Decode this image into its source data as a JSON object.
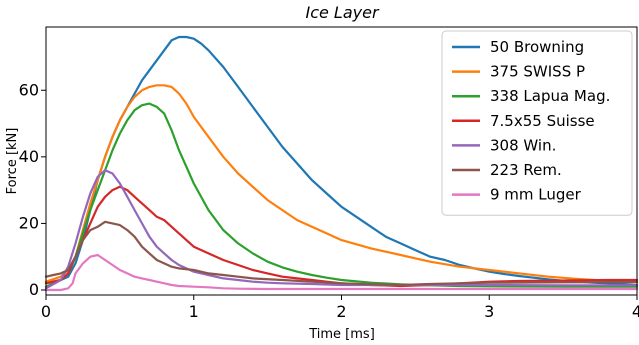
{
  "chart_data": {
    "type": "line",
    "title": "Ice Layer",
    "xlabel": "Time [ms]",
    "ylabel": "Force [kN]",
    "xlim": [
      0,
      4
    ],
    "ylim": [
      -1.5,
      79
    ],
    "xticks": [
      "0",
      "1",
      "2",
      "3",
      "4"
    ],
    "yticks": [
      "0",
      "20",
      "40",
      "60"
    ],
    "grid": false,
    "legend_position": "top-right",
    "series": [
      {
        "name": "50 Browning",
        "color": "#1f77b4",
        "points": [
          [
            0,
            2
          ],
          [
            0.05,
            2.5
          ],
          [
            0.1,
            3
          ],
          [
            0.15,
            4
          ],
          [
            0.2,
            8
          ],
          [
            0.25,
            15
          ],
          [
            0.3,
            24
          ],
          [
            0.35,
            33
          ],
          [
            0.4,
            40
          ],
          [
            0.45,
            46
          ],
          [
            0.5,
            51
          ],
          [
            0.55,
            55
          ],
          [
            0.6,
            59
          ],
          [
            0.65,
            63
          ],
          [
            0.7,
            66
          ],
          [
            0.75,
            69
          ],
          [
            0.8,
            72
          ],
          [
            0.85,
            75
          ],
          [
            0.9,
            76
          ],
          [
            0.95,
            76
          ],
          [
            1.0,
            75.5
          ],
          [
            1.05,
            74
          ],
          [
            1.1,
            72
          ],
          [
            1.2,
            67
          ],
          [
            1.3,
            61
          ],
          [
            1.4,
            55
          ],
          [
            1.5,
            49
          ],
          [
            1.6,
            43
          ],
          [
            1.7,
            38
          ],
          [
            1.8,
            33
          ],
          [
            1.9,
            29
          ],
          [
            2.0,
            25
          ],
          [
            2.1,
            22
          ],
          [
            2.2,
            19
          ],
          [
            2.3,
            16
          ],
          [
            2.4,
            14
          ],
          [
            2.5,
            12
          ],
          [
            2.6,
            10
          ],
          [
            2.7,
            9
          ],
          [
            2.8,
            7.5
          ],
          [
            2.9,
            6.5
          ],
          [
            3.0,
            5.5
          ],
          [
            3.1,
            4.8
          ],
          [
            3.2,
            4.2
          ],
          [
            3.3,
            3.7
          ],
          [
            3.4,
            3.2
          ],
          [
            3.5,
            2.8
          ],
          [
            3.6,
            2.5
          ],
          [
            3.7,
            2.2
          ],
          [
            3.8,
            2
          ],
          [
            3.9,
            1.8
          ],
          [
            4.0,
            1.5
          ]
        ]
      },
      {
        "name": "375 SWISS P",
        "color": "#ff7f0e",
        "points": [
          [
            0,
            2.5
          ],
          [
            0.1,
            4
          ],
          [
            0.15,
            6
          ],
          [
            0.2,
            10
          ],
          [
            0.25,
            18
          ],
          [
            0.3,
            26
          ],
          [
            0.35,
            33
          ],
          [
            0.4,
            40
          ],
          [
            0.45,
            46
          ],
          [
            0.5,
            51
          ],
          [
            0.55,
            55
          ],
          [
            0.6,
            58
          ],
          [
            0.65,
            60
          ],
          [
            0.7,
            61
          ],
          [
            0.75,
            61.5
          ],
          [
            0.8,
            61.5
          ],
          [
            0.85,
            61
          ],
          [
            0.9,
            59
          ],
          [
            0.95,
            56
          ],
          [
            1.0,
            52
          ],
          [
            1.1,
            46
          ],
          [
            1.2,
            40
          ],
          [
            1.3,
            35
          ],
          [
            1.4,
            31
          ],
          [
            1.5,
            27
          ],
          [
            1.6,
            24
          ],
          [
            1.7,
            21
          ],
          [
            1.8,
            19
          ],
          [
            1.9,
            17
          ],
          [
            2.0,
            15
          ],
          [
            2.2,
            12.5
          ],
          [
            2.4,
            10.5
          ],
          [
            2.6,
            8.5
          ],
          [
            2.8,
            7
          ],
          [
            3.0,
            6
          ],
          [
            3.2,
            5
          ],
          [
            3.4,
            4
          ],
          [
            3.6,
            3.3
          ],
          [
            3.8,
            2.8
          ],
          [
            4.0,
            2.4
          ]
        ]
      },
      {
        "name": "338 Lapua Mag.",
        "color": "#2ca02c",
        "points": [
          [
            0,
            1
          ],
          [
            0.1,
            3
          ],
          [
            0.15,
            5
          ],
          [
            0.2,
            10
          ],
          [
            0.25,
            17
          ],
          [
            0.3,
            24
          ],
          [
            0.35,
            30
          ],
          [
            0.4,
            36
          ],
          [
            0.45,
            42
          ],
          [
            0.5,
            47
          ],
          [
            0.55,
            51
          ],
          [
            0.6,
            54
          ],
          [
            0.65,
            55.5
          ],
          [
            0.7,
            56
          ],
          [
            0.75,
            55
          ],
          [
            0.8,
            53
          ],
          [
            0.85,
            48
          ],
          [
            0.9,
            42
          ],
          [
            0.95,
            37
          ],
          [
            1.0,
            32
          ],
          [
            1.1,
            24
          ],
          [
            1.2,
            18
          ],
          [
            1.3,
            14
          ],
          [
            1.4,
            11
          ],
          [
            1.5,
            8.5
          ],
          [
            1.6,
            6.8
          ],
          [
            1.7,
            5.5
          ],
          [
            1.8,
            4.5
          ],
          [
            1.9,
            3.7
          ],
          [
            2.0,
            3
          ],
          [
            2.2,
            2.2
          ],
          [
            2.4,
            1.7
          ],
          [
            2.6,
            1.4
          ],
          [
            2.8,
            1.2
          ],
          [
            3.0,
            1.1
          ],
          [
            3.5,
            1
          ],
          [
            4.0,
            1
          ]
        ]
      },
      {
        "name": "7.5x55 Suisse",
        "color": "#d62728",
        "points": [
          [
            0,
            2
          ],
          [
            0.1,
            3
          ],
          [
            0.15,
            5
          ],
          [
            0.2,
            10
          ],
          [
            0.25,
            15
          ],
          [
            0.3,
            20
          ],
          [
            0.35,
            25
          ],
          [
            0.4,
            28
          ],
          [
            0.45,
            30
          ],
          [
            0.5,
            31
          ],
          [
            0.55,
            30
          ],
          [
            0.6,
            28
          ],
          [
            0.65,
            26
          ],
          [
            0.7,
            24
          ],
          [
            0.75,
            22
          ],
          [
            0.8,
            21
          ],
          [
            0.85,
            19
          ],
          [
            0.9,
            17
          ],
          [
            0.95,
            15
          ],
          [
            1.0,
            13
          ],
          [
            1.1,
            11
          ],
          [
            1.2,
            9
          ],
          [
            1.3,
            7.5
          ],
          [
            1.4,
            6
          ],
          [
            1.5,
            5
          ],
          [
            1.6,
            4
          ],
          [
            1.7,
            3.5
          ],
          [
            1.8,
            3
          ],
          [
            1.9,
            2.5
          ],
          [
            2.0,
            2
          ],
          [
            2.2,
            1.5
          ],
          [
            2.4,
            1.2
          ],
          [
            2.6,
            1.5
          ],
          [
            2.8,
            2
          ],
          [
            3.0,
            2.5
          ],
          [
            3.2,
            2.7
          ],
          [
            3.4,
            2.8
          ],
          [
            3.6,
            2.9
          ],
          [
            3.8,
            3
          ],
          [
            4.0,
            3
          ]
        ]
      },
      {
        "name": "308 Win.",
        "color": "#9467bd",
        "points": [
          [
            0,
            0.5
          ],
          [
            0.1,
            3
          ],
          [
            0.15,
            7
          ],
          [
            0.2,
            14
          ],
          [
            0.25,
            22
          ],
          [
            0.3,
            29
          ],
          [
            0.35,
            34
          ],
          [
            0.4,
            36
          ],
          [
            0.45,
            35
          ],
          [
            0.5,
            32
          ],
          [
            0.55,
            28
          ],
          [
            0.6,
            24
          ],
          [
            0.65,
            20
          ],
          [
            0.7,
            16
          ],
          [
            0.75,
            13
          ],
          [
            0.8,
            11
          ],
          [
            0.85,
            9
          ],
          [
            0.9,
            7.5
          ],
          [
            0.95,
            6.5
          ],
          [
            1.0,
            5.5
          ],
          [
            1.1,
            4.5
          ],
          [
            1.2,
            3.5
          ],
          [
            1.3,
            3
          ],
          [
            1.4,
            2.5
          ],
          [
            1.5,
            2.2
          ],
          [
            1.6,
            2
          ],
          [
            1.8,
            1.8
          ],
          [
            2.0,
            1.5
          ],
          [
            2.5,
            1.5
          ],
          [
            3.0,
            1.5
          ],
          [
            3.5,
            1.4
          ],
          [
            4.0,
            1.4
          ]
        ]
      },
      {
        "name": "223 Rem.",
        "color": "#8c564b",
        "points": [
          [
            0,
            4
          ],
          [
            0.05,
            4.5
          ],
          [
            0.1,
            5
          ],
          [
            0.15,
            6
          ],
          [
            0.2,
            10
          ],
          [
            0.25,
            15
          ],
          [
            0.3,
            18
          ],
          [
            0.35,
            19
          ],
          [
            0.4,
            20.5
          ],
          [
            0.45,
            20
          ],
          [
            0.5,
            19.5
          ],
          [
            0.55,
            18
          ],
          [
            0.6,
            16
          ],
          [
            0.65,
            13
          ],
          [
            0.7,
            11
          ],
          [
            0.75,
            9
          ],
          [
            0.8,
            8
          ],
          [
            0.85,
            7
          ],
          [
            0.9,
            6.5
          ],
          [
            1.0,
            6
          ],
          [
            1.1,
            5
          ],
          [
            1.2,
            4.5
          ],
          [
            1.3,
            4
          ],
          [
            1.4,
            3.5
          ],
          [
            1.6,
            3
          ],
          [
            1.8,
            2.5
          ],
          [
            2.0,
            2
          ],
          [
            2.2,
            1.7
          ],
          [
            2.4,
            1.5
          ],
          [
            2.6,
            1.8
          ],
          [
            2.8,
            2
          ],
          [
            3.0,
            2.2
          ],
          [
            3.5,
            2.3
          ],
          [
            4.0,
            2.4
          ]
        ]
      },
      {
        "name": "9 mm Luger",
        "color": "#e377c2",
        "points": [
          [
            0,
            0
          ],
          [
            0.1,
            0
          ],
          [
            0.15,
            0.5
          ],
          [
            0.18,
            2
          ],
          [
            0.2,
            5
          ],
          [
            0.25,
            8
          ],
          [
            0.3,
            10
          ],
          [
            0.35,
            10.5
          ],
          [
            0.4,
            9
          ],
          [
            0.45,
            7.5
          ],
          [
            0.5,
            6
          ],
          [
            0.55,
            5
          ],
          [
            0.6,
            4
          ],
          [
            0.65,
            3.5
          ],
          [
            0.7,
            3
          ],
          [
            0.75,
            2.5
          ],
          [
            0.8,
            2
          ],
          [
            0.85,
            1.5
          ],
          [
            0.9,
            1.2
          ],
          [
            1.0,
            1
          ],
          [
            1.1,
            0.8
          ],
          [
            1.2,
            0.5
          ],
          [
            1.3,
            0.4
          ],
          [
            1.5,
            0.3
          ],
          [
            2.0,
            0.3
          ],
          [
            2.5,
            0.3
          ],
          [
            3.0,
            0.3
          ],
          [
            3.5,
            0.3
          ],
          [
            4.0,
            0.3
          ]
        ]
      }
    ]
  }
}
